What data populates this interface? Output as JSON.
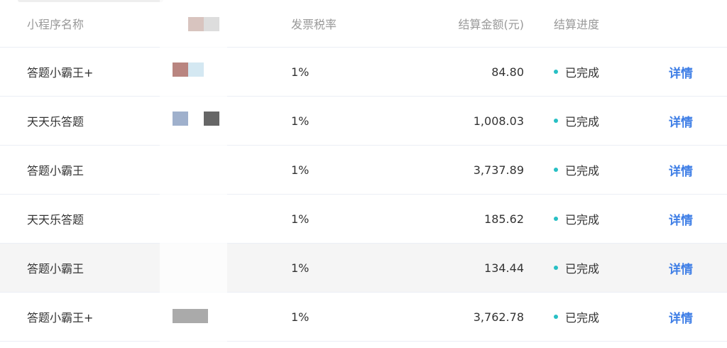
{
  "table": {
    "headers": [
      "小程序名称",
      "",
      "发票税率",
      "结算金额(元)",
      "结算进度",
      ""
    ],
    "rows": [
      {
        "name": "答题小霸王+",
        "rate": "1%",
        "amount": "84.80",
        "status": "已完成",
        "action": "详情"
      },
      {
        "name": "天天乐答题",
        "rate": "1%",
        "amount": "1,008.03",
        "status": "已完成",
        "action": "详情"
      },
      {
        "name": "答题小霸王",
        "rate": "1%",
        "amount": "3,737.89",
        "status": "已完成",
        "action": "详情"
      },
      {
        "name": "天天乐答题",
        "rate": "1%",
        "amount": "185.62",
        "status": "已完成",
        "action": "详情"
      },
      {
        "name": "答题小霸王",
        "rate": "1%",
        "amount": "134.44",
        "status": "已完成",
        "action": "详情"
      },
      {
        "name": "答题小霸王+",
        "rate": "1%",
        "amount": "3,762.78",
        "status": "已完成",
        "action": "详情"
      }
    ],
    "highlighted_row": 4,
    "colors": {
      "status_dot": "#27bfc4",
      "link": "#3e7ee6",
      "hover_row": "#f5f5f5"
    }
  }
}
